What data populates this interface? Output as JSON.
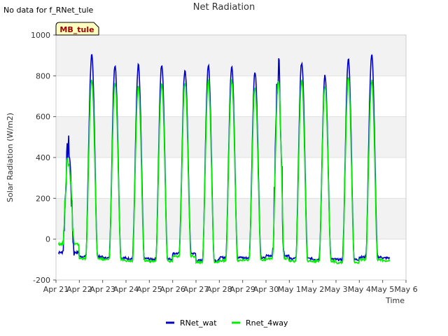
{
  "header": {
    "no_data_note": "No data for f_RNet_tule",
    "title": "Net Radiation"
  },
  "badge": {
    "label": "MB_tule"
  },
  "chart_data": {
    "type": "line",
    "title": "Net Radiation",
    "xlabel": "Time",
    "ylabel": "Solar Radiation (W/m2)",
    "xlim": [
      0,
      15
    ],
    "ylim": [
      -200,
      1000
    ],
    "yticks": [
      -200,
      0,
      200,
      400,
      600,
      800,
      1000
    ],
    "xtick_labels": [
      "Apr 21",
      "Apr 22",
      "Apr 23",
      "Apr 24",
      "Apr 25",
      "Apr 26",
      "Apr 27",
      "Apr 28",
      "Apr 29",
      "Apr 30",
      "May 1",
      "May 2",
      "May 3",
      "May 4",
      "May 5",
      "May 6"
    ],
    "series": [
      {
        "name": "RNet_wat",
        "color": "#0000cc",
        "day_start": 0,
        "daily_peaks": [
          455,
          900,
          855,
          850,
          855,
          830,
          855,
          848,
          822,
          850,
          868,
          798,
          882,
          902
        ],
        "night_base": [
          -65,
          -85,
          -92,
          -95,
          -98,
          -70,
          -105,
          -90,
          -92,
          -80,
          -95,
          -98,
          -100,
          -88,
          -92
        ]
      },
      {
        "name": "Rnet_4way",
        "color": "#00ee00",
        "day_start": 0,
        "daily_peaks": [
          420,
          785,
          765,
          755,
          765,
          765,
          780,
          778,
          740,
          780,
          780,
          750,
          795,
          775
        ],
        "night_base": [
          -25,
          -95,
          -100,
          -105,
          -108,
          -85,
          -112,
          -105,
          -102,
          -95,
          -108,
          -108,
          -115,
          -100,
          -105
        ]
      }
    ]
  }
}
